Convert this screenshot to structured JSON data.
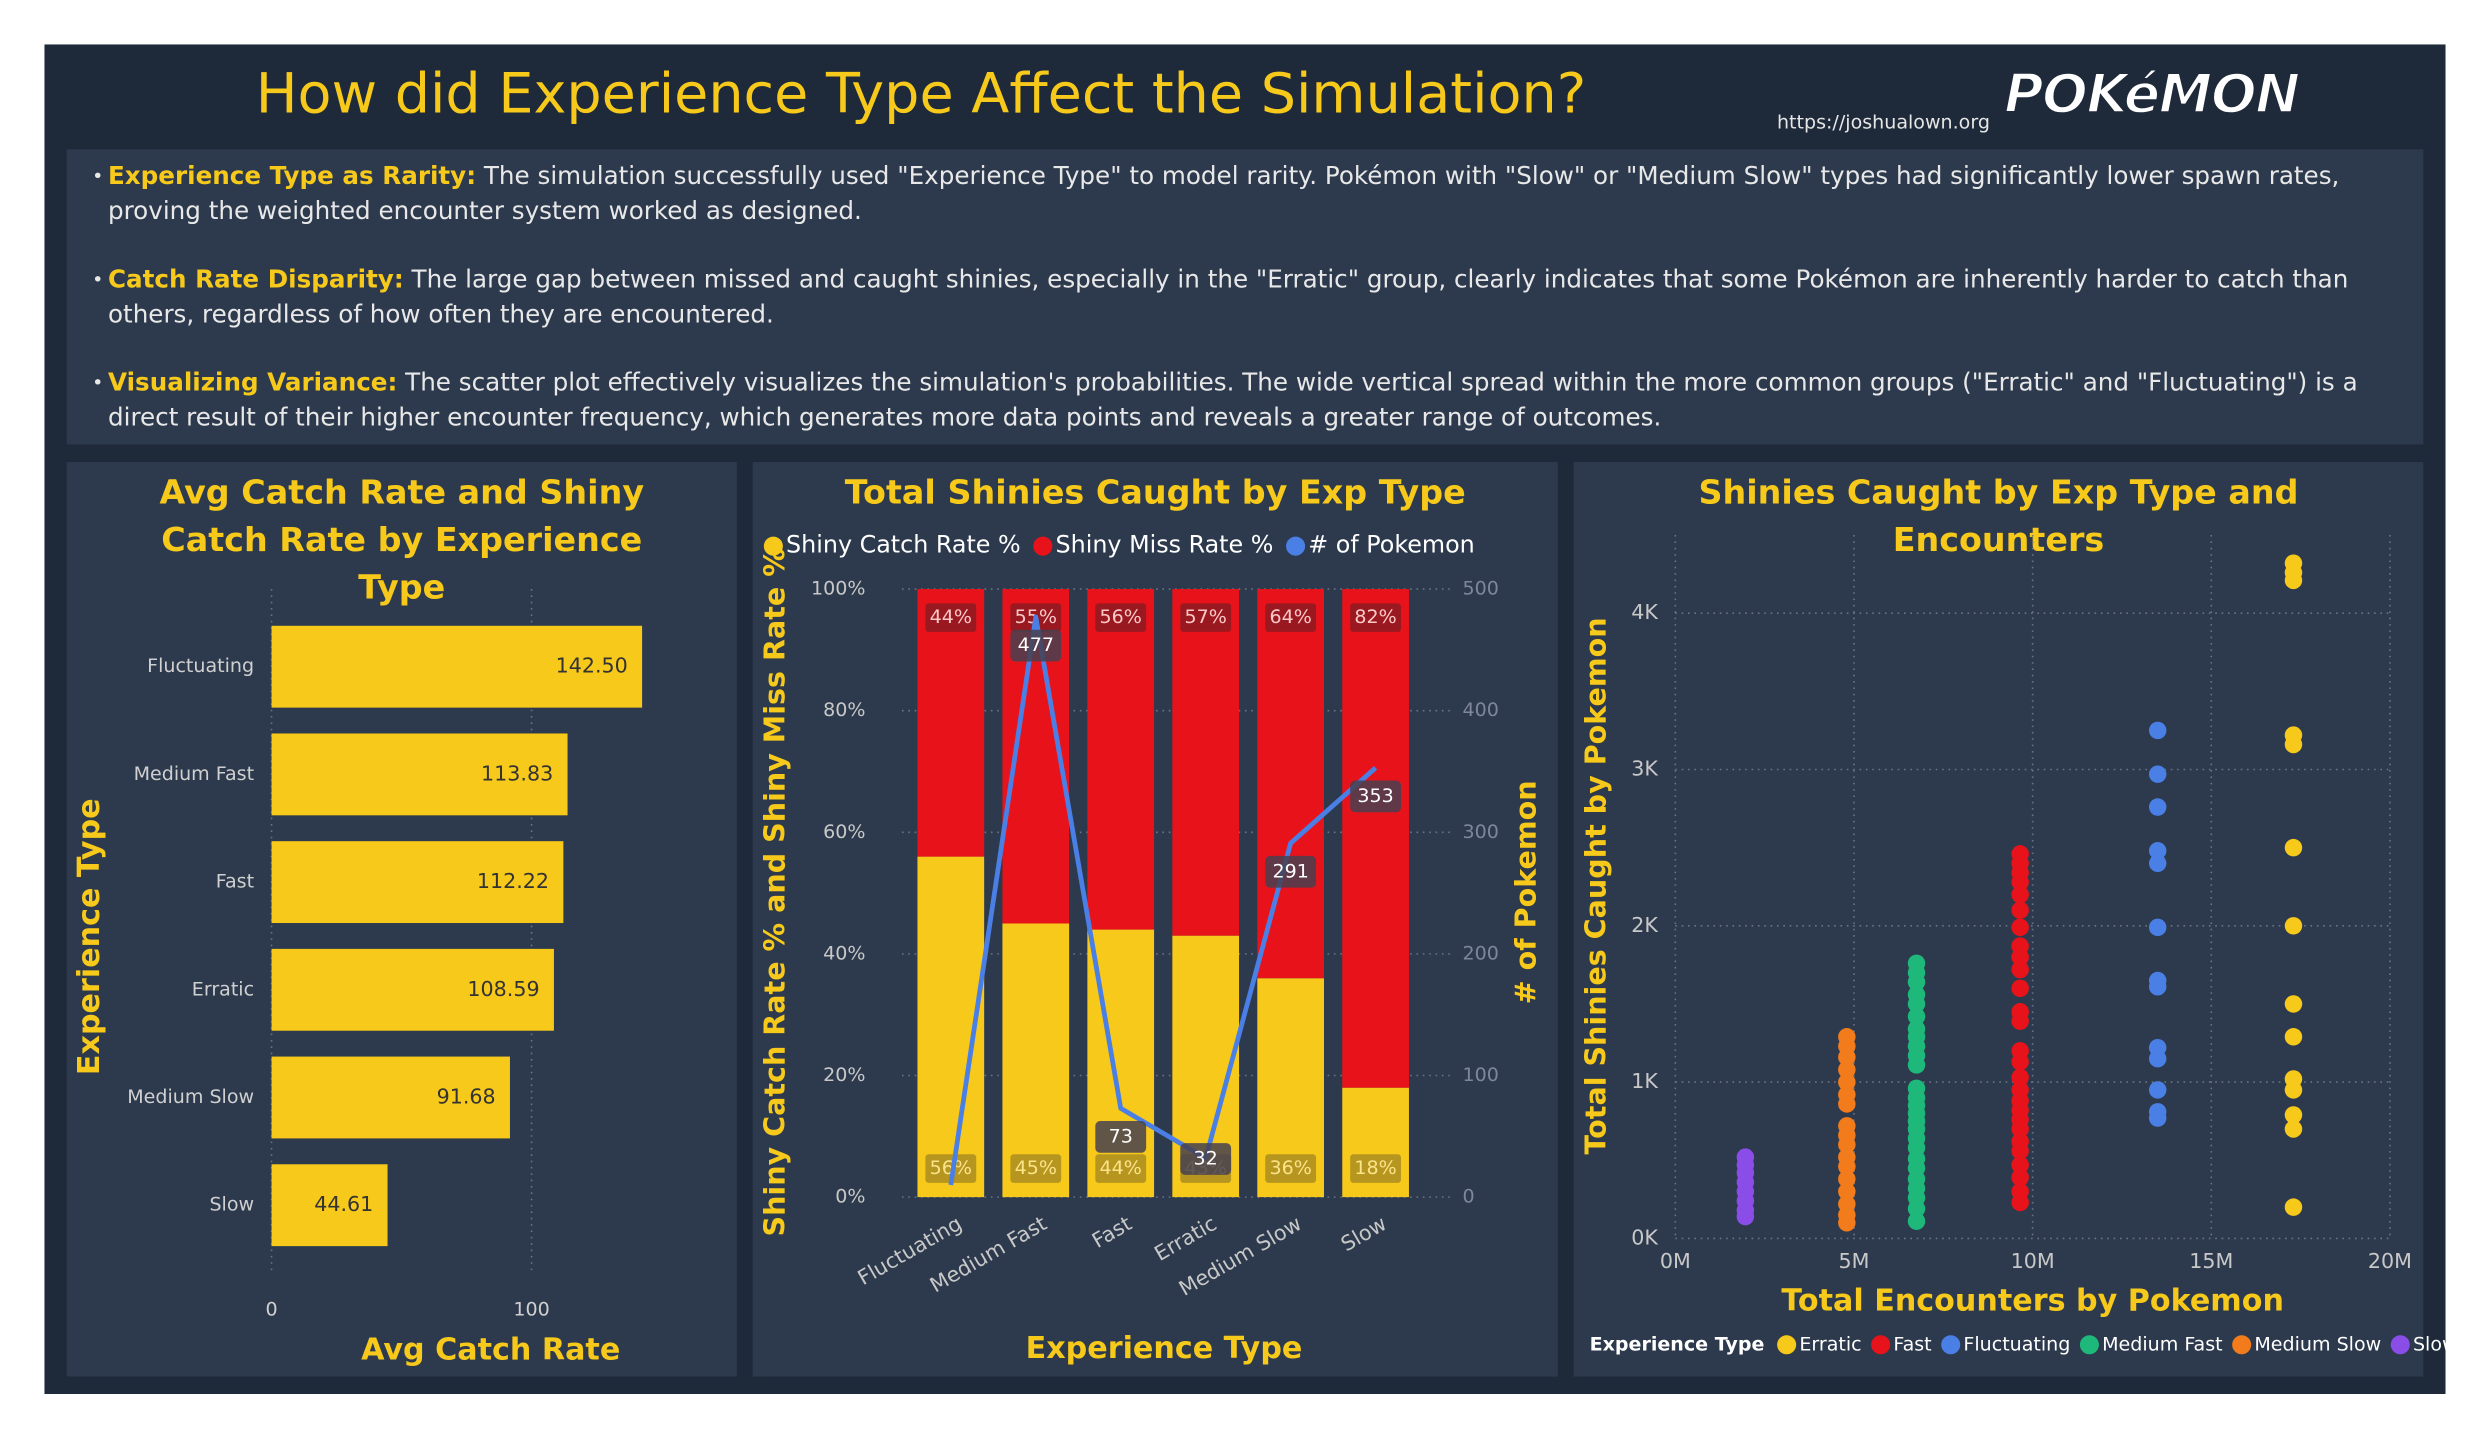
{
  "header": {
    "title": "How did Experience Type Affect the Simulation?",
    "url": "https://joshualown.org",
    "logo": "POKéMON"
  },
  "bullets": [
    {
      "label": "Experience Type as Rarity:",
      "text": "The simulation successfully used \"Experience Type\" to model rarity. Pokémon with \"Slow\" or \"Medium Slow\" types had significantly lower spawn rates, proving the weighted encounter system worked as designed."
    },
    {
      "label": "Catch Rate Disparity:",
      "text": "The large gap between missed and caught shinies, especially in the \"Erratic\" group, clearly indicates that some Pokémon are inherently harder to catch than others, regardless of how often they are encountered."
    },
    {
      "label": "Visualizing Variance:",
      "text": "The scatter plot effectively visualizes the simulation's probabilities. The wide vertical spread within the more common groups (\"Erratic\" and \"Fluctuating\") is a direct result of their higher encounter frequency, which generates more data points and reveals a greater range of outcomes."
    }
  ],
  "chart_data": [
    {
      "type": "bar",
      "orientation": "horizontal",
      "title": "Avg Catch Rate and Shiny Catch Rate by Experience Type",
      "x_label": "Avg Catch Rate",
      "y_label": "Experience Type",
      "categories": [
        "Fluctuating",
        "Medium Fast",
        "Fast",
        "Erratic",
        "Medium Slow",
        "Slow"
      ],
      "values": [
        142.5,
        113.83,
        112.22,
        108.59,
        91.68,
        44.61
      ],
      "value_labels": [
        "142.50",
        "113.83",
        "112.22",
        "108.59",
        "91.68",
        "44.61"
      ],
      "color": "#f7c91b",
      "xlim": [
        0,
        160
      ],
      "xticks": [
        0,
        100
      ],
      "grid": true
    },
    {
      "type": "bar_line",
      "title": "Total Shinies Caught by Exp Type",
      "x_label": "Experience Type",
      "y_label": "Shiny Catch Rate % and Shiny Miss Rate %",
      "y2_label": "# of Pokemon",
      "categories": [
        "Fluctuating",
        "Medium Fast",
        "Fast",
        "Erratic",
        "Medium Slow",
        "Slow"
      ],
      "series": [
        {
          "name": "Shiny Catch Rate %",
          "color": "#f7c91b",
          "values": [
            56,
            45,
            44,
            43,
            36,
            18
          ],
          "value_labels": [
            "56%",
            "45%",
            "44%",
            "43%",
            "36%",
            "18%"
          ]
        },
        {
          "name": "Shiny Miss Rate %",
          "color": "#e8131a",
          "values": [
            44,
            55,
            56,
            57,
            64,
            82
          ],
          "value_labels": [
            "44%",
            "55%",
            "56%",
            "57%",
            "64%",
            "82%"
          ]
        },
        {
          "name": "# of Pokemon",
          "color": "#4a7fe6",
          "axis": "y2",
          "values": [
            10,
            477,
            73,
            32,
            291,
            353
          ],
          "value_labels": [
            null,
            "477",
            "73",
            "32",
            "291",
            "353"
          ]
        }
      ],
      "ylim": [
        0,
        100
      ],
      "yticks": [
        {
          "value": 0,
          "label": "0%"
        },
        {
          "value": 20,
          "label": "20%"
        },
        {
          "value": 40,
          "label": "40%"
        },
        {
          "value": 60,
          "label": "60%"
        },
        {
          "value": 80,
          "label": "80%"
        },
        {
          "value": 100,
          "label": "100%"
        }
      ],
      "y2lim": [
        0,
        500
      ],
      "y2ticks": [
        0,
        100,
        200,
        300,
        400,
        500
      ],
      "grid": true
    },
    {
      "type": "scatter",
      "title": "Shinies Caught by Exp Type and Encounters",
      "x_label": "Total Encounters by Pokemon",
      "y_label": "Total Shinies Caught by Pokemon",
      "legend_title": "Experience Type",
      "series": [
        {
          "name": "Erratic",
          "color": "#f7c91b",
          "x": [
            17300000,
            17300000,
            17300000,
            17300000,
            17300000,
            17300000,
            17300000,
            17300000,
            17300000,
            17300000,
            17300000,
            17300000,
            17300000,
            17300000
          ],
          "y": [
            4320,
            4260,
            4210,
            3220,
            3160,
            2500,
            2000,
            1500,
            1290,
            1020,
            950,
            790,
            700,
            200
          ]
        },
        {
          "name": "Fast",
          "color": "#e8131a",
          "x": [
            9650000,
            9650000,
            9650000,
            9650000,
            9650000,
            9650000,
            9650000,
            9650000,
            9650000,
            9650000,
            9650000,
            9650000,
            9650000,
            9650000,
            9650000,
            9650000,
            9650000,
            9650000,
            9650000,
            9650000,
            9650000,
            9650000,
            9650000,
            9650000,
            9650000,
            9650000,
            9650000
          ],
          "y": [
            2460,
            2400,
            2340,
            2280,
            2200,
            2100,
            1990,
            1870,
            1800,
            1720,
            1600,
            1450,
            1390,
            1200,
            1130,
            1030,
            950,
            880,
            820,
            760,
            700,
            620,
            560,
            470,
            390,
            300,
            230
          ]
        },
        {
          "name": "Fluctuating",
          "color": "#4a7fe6",
          "x": [
            13500000,
            13500000,
            13500000,
            13500000,
            13500000,
            13500000,
            13500000,
            13500000,
            13500000,
            13500000,
            13500000,
            13500000,
            13500000
          ],
          "y": [
            3250,
            2970,
            2760,
            2480,
            2400,
            1990,
            1650,
            1610,
            1220,
            1150,
            950,
            810,
            770
          ]
        },
        {
          "name": "Medium Fast",
          "color": "#1db87a",
          "x": [
            6750000,
            6750000,
            6750000,
            6750000,
            6750000,
            6750000,
            6750000,
            6750000,
            6750000,
            6750000,
            6750000,
            6750000,
            6750000,
            6750000,
            6750000,
            6750000,
            6750000,
            6750000,
            6750000,
            6750000,
            6750000,
            6750000,
            6750000,
            6750000,
            6750000,
            6750000
          ],
          "y": [
            1760,
            1700,
            1640,
            1560,
            1500,
            1420,
            1340,
            1290,
            1230,
            1170,
            1110,
            960,
            900,
            850,
            800,
            750,
            700,
            640,
            580,
            510,
            450,
            380,
            320,
            260,
            190,
            110
          ]
        },
        {
          "name": "Medium Slow",
          "color": "#f27b1c",
          "x": [
            4800000,
            4800000,
            4800000,
            4800000,
            4800000,
            4800000,
            4800000,
            4800000,
            4800000,
            4800000,
            4800000,
            4800000,
            4800000,
            4800000,
            4800000,
            4800000,
            4800000
          ],
          "y": [
            1290,
            1230,
            1160,
            1080,
            1000,
            920,
            860,
            720,
            660,
            600,
            520,
            460,
            380,
            300,
            220,
            150,
            100
          ]
        },
        {
          "name": "Slow",
          "color": "#8a4de8",
          "x": [
            1960000,
            1960000,
            1960000,
            1960000,
            1960000,
            1960000,
            1960000,
            1960000
          ],
          "y": [
            520,
            470,
            420,
            360,
            300,
            240,
            180,
            140
          ]
        }
      ],
      "xlim": [
        0,
        20000000
      ],
      "xticks": [
        {
          "value": 0,
          "label": "0M"
        },
        {
          "value": 5000000,
          "label": "5M"
        },
        {
          "value": 10000000,
          "label": "10M"
        },
        {
          "value": 15000000,
          "label": "15M"
        },
        {
          "value": 20000000,
          "label": "20M"
        }
      ],
      "ylim": [
        0,
        4500
      ],
      "yticks": [
        {
          "value": 0,
          "label": "0K"
        },
        {
          "value": 1000,
          "label": "1K"
        },
        {
          "value": 2000,
          "label": "2K"
        },
        {
          "value": 3000,
          "label": "3K"
        },
        {
          "value": 4000,
          "label": "4K"
        }
      ],
      "grid": true
    }
  ]
}
